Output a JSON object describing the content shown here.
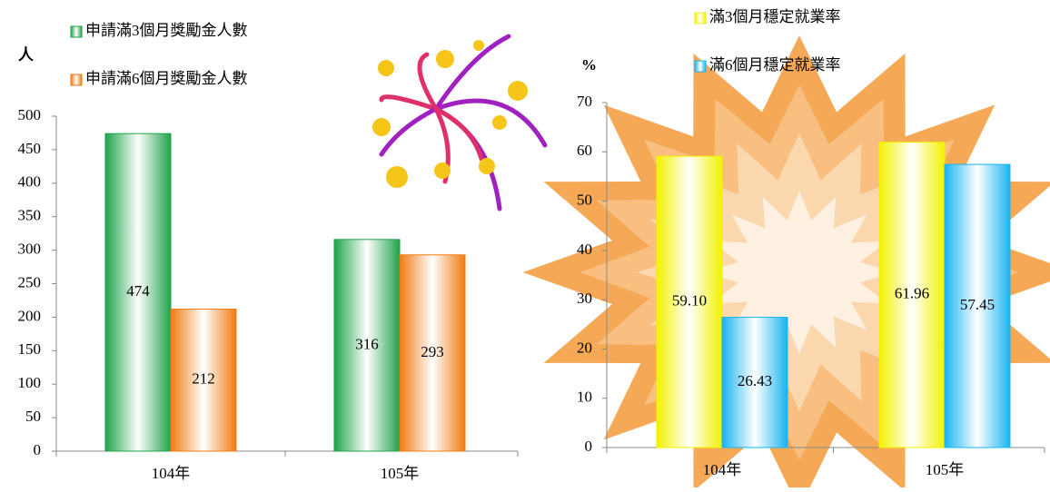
{
  "chart_data": [
    {
      "type": "bar",
      "y_label": "人",
      "categories": [
        "104年",
        "105年"
      ],
      "series": [
        {
          "name": "申請滿3個月獎勵金人數",
          "color": "#1fa34a",
          "values": [
            474,
            316
          ]
        },
        {
          "name": "申請滿6個月獎勵金人數",
          "color": "#f07a10",
          "values": [
            212,
            293
          ]
        }
      ],
      "ylim": [
        0,
        500
      ],
      "yticks": [
        0,
        50,
        100,
        150,
        200,
        250,
        300,
        350,
        400,
        450,
        500
      ]
    },
    {
      "type": "bar",
      "y_label": "%",
      "categories": [
        "104年",
        "105年"
      ],
      "series": [
        {
          "name": "滿3個月穩定就業率",
          "color": "#f2f200",
          "values": [
            59.1,
            61.96
          ],
          "value_labels": [
            "59.10",
            "61.96"
          ]
        },
        {
          "name": "滿6個月穩定就業率",
          "color": "#19b4f0",
          "values": [
            26.43,
            57.45
          ]
        }
      ],
      "ylim": [
        0,
        70
      ],
      "yticks": [
        0,
        10,
        20,
        30,
        40,
        50,
        60,
        70
      ]
    }
  ]
}
